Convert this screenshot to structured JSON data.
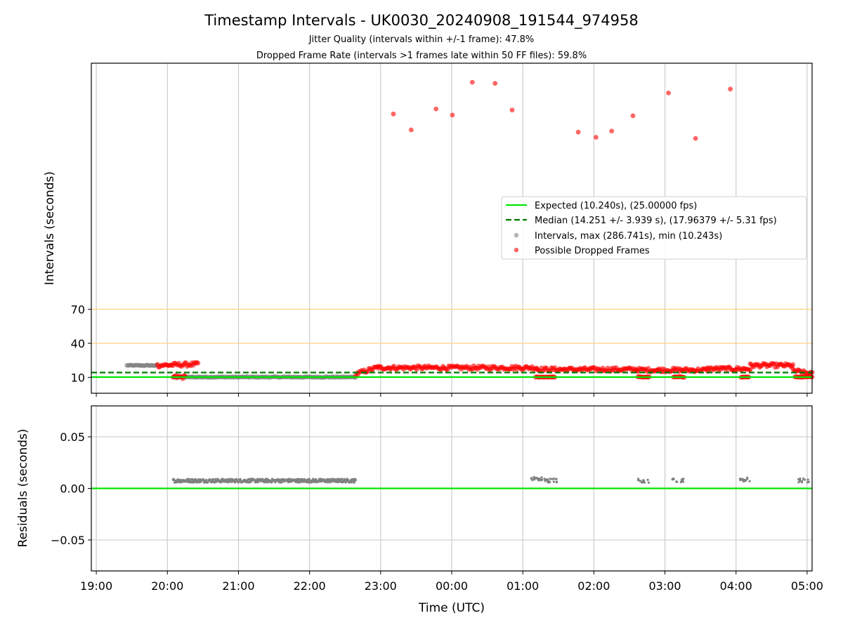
{
  "title": "Timestamp Intervals - UK0030_20240908_191544_974958",
  "subtitle1": "Jitter Quality (intervals within +/-1 frame): 47.8%",
  "subtitle2": "Dropped Frame Rate (intervals >1 frames late within 50 FF files): 59.8%",
  "colors": {
    "expected": "#00e600",
    "median": "#007a00",
    "intervals": "#808080",
    "dropped": "#ff0000",
    "threshold": "#ffd280",
    "grid": "#cccccc"
  },
  "chart_data": [
    {
      "type": "scatter",
      "ylabel": "Intervals (seconds)",
      "ylim": [
        -4,
        286.741
      ],
      "xlim": [
        18.93,
        29.07
      ],
      "yticks": [
        10,
        40,
        70
      ],
      "threshold_lines": [
        40,
        70
      ],
      "grid": true,
      "legend_placement": "center-right",
      "legend": [
        "Expected (10.240s), (25.00000 fps)",
        "Median (14.251 +/- 3.939 s), (17.96379 +/- 5.31 fps)",
        "Intervals, max (286.741s), min (10.243s)",
        "Possible Dropped Frames"
      ],
      "expected": 10.24,
      "median": 14.251,
      "interval_segments": [
        {
          "x0": 19.43,
          "x1": 19.86,
          "y": 20.5
        },
        {
          "x0": 20.08,
          "x1": 22.65,
          "y": 10.25
        }
      ],
      "dropped_segments": [
        {
          "x0": 19.86,
          "x1": 20.43,
          "y0": 20.5,
          "y1": 21.6
        },
        {
          "x0": 20.08,
          "x1": 20.25,
          "y0": 10.25,
          "y1": 10.25
        },
        {
          "x0": 22.65,
          "x1": 22.97,
          "y0": 13,
          "y1": 19
        },
        {
          "x0": 22.97,
          "x1": 25.2,
          "y0": 18.5,
          "y1": 18.5
        },
        {
          "x0": 25.2,
          "x1": 26.6,
          "y0": 17.0,
          "y1": 17.0
        },
        {
          "x0": 26.6,
          "x1": 27.6,
          "y0": 16.5,
          "y1": 16.5
        },
        {
          "x0": 27.6,
          "x1": 28.2,
          "y0": 17.5,
          "y1": 17.5
        },
        {
          "x0": 28.2,
          "x1": 28.8,
          "y0": 20.5,
          "y1": 20.5
        },
        {
          "x0": 28.8,
          "x1": 29.07,
          "y0": 16,
          "y1": 13
        }
      ],
      "dropped_low_clusters": [
        {
          "x0": 25.18,
          "x1": 25.45,
          "y": 10.3
        },
        {
          "x0": 26.62,
          "x1": 26.78,
          "y": 10.3
        },
        {
          "x0": 27.12,
          "x1": 27.27,
          "y": 10.3
        },
        {
          "x0": 28.07,
          "x1": 28.18,
          "y": 10.3
        },
        {
          "x0": 28.83,
          "x1": 29.07,
          "y": 10.3
        }
      ],
      "dropped_outliers": [
        {
          "x": 23.18,
          "y": 242
        },
        {
          "x": 23.43,
          "y": 228
        },
        {
          "x": 23.78,
          "y": 246.5
        },
        {
          "x": 24.01,
          "y": 241
        },
        {
          "x": 24.29,
          "y": 270
        },
        {
          "x": 24.61,
          "y": 269
        },
        {
          "x": 24.85,
          "y": 245.5
        },
        {
          "x": 25.78,
          "y": 226
        },
        {
          "x": 26.03,
          "y": 221.5
        },
        {
          "x": 26.25,
          "y": 227
        },
        {
          "x": 26.55,
          "y": 240.5
        },
        {
          "x": 27.05,
          "y": 260.5
        },
        {
          "x": 27.43,
          "y": 220.5
        },
        {
          "x": 27.92,
          "y": 264
        }
      ]
    },
    {
      "type": "scatter",
      "ylabel": "Residuals (seconds)",
      "xlabel": "Time (UTC)",
      "ylim": [
        -0.08,
        0.08
      ],
      "xlim": [
        18.93,
        29.07
      ],
      "yticks": [
        -0.05,
        0.0,
        0.05
      ],
      "ytick_labels": [
        "−0.05",
        "0.00",
        "0.05"
      ],
      "xticks": [
        19,
        20,
        21,
        22,
        23,
        24,
        25,
        26,
        27,
        28,
        29
      ],
      "xtick_labels": [
        "19:00",
        "20:00",
        "21:00",
        "22:00",
        "23:00",
        "00:00",
        "01:00",
        "02:00",
        "03:00",
        "04:00",
        "05:00"
      ],
      "grid": true,
      "zero_line": 0.0,
      "residual_segments": [
        {
          "x0": 20.08,
          "x1": 22.65,
          "y": 0.0075
        }
      ],
      "residual_clusters": [
        {
          "x": 25.2,
          "y": 0.0095
        },
        {
          "x": 25.28,
          "y": 0.008
        },
        {
          "x": 25.43,
          "y": 0.0078
        },
        {
          "x": 26.7,
          "y": 0.0075
        },
        {
          "x": 27.18,
          "y": 0.0075
        },
        {
          "x": 28.12,
          "y": 0.0085
        },
        {
          "x": 28.95,
          "y": 0.0075
        }
      ]
    }
  ]
}
